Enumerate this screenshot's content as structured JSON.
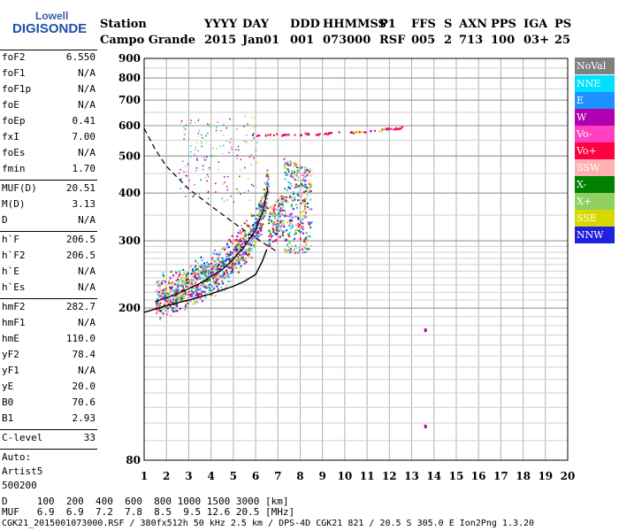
{
  "logo": {
    "line1": "Lowell",
    "line2": "DIGISONDE"
  },
  "header": {
    "labels": [
      "Station",
      "YYYY",
      "DAY",
      "DDD",
      "HHMMSS",
      "P1",
      "FFS",
      "S",
      "AXN",
      "PPS",
      "IGA",
      "PS"
    ],
    "values": [
      "Campo Grande",
      "2015",
      "Jan01",
      "001",
      "073000",
      "RSF",
      "005",
      "2",
      "713",
      "100",
      "03+",
      "25"
    ]
  },
  "params": [
    {
      "k": "foF2",
      "v": "6.550"
    },
    {
      "k": "foF1",
      "v": "N/A"
    },
    {
      "k": "foF1p",
      "v": "N/A"
    },
    {
      "k": "foE",
      "v": "N/A"
    },
    {
      "k": "foEp",
      "v": "0.41"
    },
    {
      "k": "fxI",
      "v": "7.00"
    },
    {
      "k": "foEs",
      "v": "N/A"
    },
    {
      "k": "fmin",
      "v": "1.70"
    },
    {
      "k": "MUF(D)",
      "v": "20.51"
    },
    {
      "k": "M(D)",
      "v": "3.13"
    },
    {
      "k": "D",
      "v": "N/A"
    },
    {
      "k": "h`F",
      "v": "206.5"
    },
    {
      "k": "h`F2",
      "v": "206.5"
    },
    {
      "k": "h`E",
      "v": "N/A"
    },
    {
      "k": "h`Es",
      "v": "N/A"
    },
    {
      "k": "hmF2",
      "v": "282.7"
    },
    {
      "k": "hmF1",
      "v": "N/A"
    },
    {
      "k": "hmE",
      "v": "110.0"
    },
    {
      "k": "yF2",
      "v": "78.4"
    },
    {
      "k": "yF1",
      "v": "N/A"
    },
    {
      "k": "yE",
      "v": "20.0"
    },
    {
      "k": "B0",
      "v": "70.6"
    },
    {
      "k": "B1",
      "v": "2.93"
    },
    {
      "k": "C-level",
      "v": "33"
    }
  ],
  "auto": {
    "line1": "Auto:",
    "line2": "Artist5",
    "line3": "500200"
  },
  "legend": [
    {
      "label": "NoVal",
      "color": "#808080"
    },
    {
      "label": "NNE",
      "color": "#00e0ff"
    },
    {
      "label": "E",
      "color": "#1e90ff"
    },
    {
      "label": "W",
      "color": "#b000b0"
    },
    {
      "label": "Vo-",
      "color": "#ff40c0"
    },
    {
      "label": "Vo+",
      "color": "#ff0040"
    },
    {
      "label": "SSW",
      "color": "#ffb0b0"
    },
    {
      "label": "X-",
      "color": "#008000"
    },
    {
      "label": "X+",
      "color": "#90d060"
    },
    {
      "label": "SSE",
      "color": "#d8d800"
    },
    {
      "label": "NNW",
      "color": "#2020e0"
    }
  ],
  "footer": {
    "d_row": "D     100  200  400  600  800 1000 1500 3000 [km]",
    "muf_row": "MUF   6.9  6.9  7.2  7.8  8.5  9.5 12.6 20.5 [MHz]",
    "info": "CGK21_2015001073000.RSF / 380fx512h 50 kHz 2.5 km / DPS-4D CGK21 821 / 20.5 S 305.0 E Ion2Png 1.3.20"
  },
  "chart_data": {
    "type": "scatter",
    "xlim": [
      1,
      20
    ],
    "ylim": [
      80,
      900
    ],
    "x_ticks": [
      1,
      2,
      3,
      4,
      5,
      6,
      7,
      8,
      9,
      10,
      11,
      12,
      13,
      14,
      15,
      16,
      17,
      18,
      19,
      20
    ],
    "y_ticks": [
      80,
      200,
      300,
      400,
      500,
      600,
      700,
      800,
      900
    ],
    "y_scale": "log",
    "grid": true,
    "legend_position": "right",
    "profile": {
      "x": [
        1.0,
        2.0,
        3.0,
        4.0,
        5.0,
        5.5,
        6.0,
        6.3,
        6.5
      ],
      "y": [
        195,
        203,
        210,
        218,
        228,
        235,
        245,
        265,
        285
      ]
    },
    "trace_upper": {
      "x": [
        1.5,
        2.5,
        3.5,
        4.5,
        5.0,
        5.5,
        6.0,
        6.3,
        6.55
      ],
      "y": [
        208,
        218,
        232,
        252,
        268,
        290,
        320,
        355,
        410
      ]
    },
    "dashed_curve": {
      "x": [
        1.0,
        1.5,
        2.0,
        3.0,
        4.0,
        5.0,
        6.0,
        7.0
      ],
      "y": [
        590,
        520,
        470,
        410,
        370,
        335,
        305,
        280
      ]
    },
    "horizontal_echo": {
      "x": [
        5.8,
        7.0,
        8.0,
        9.0,
        10.0,
        11.0,
        12.0,
        12.6
      ],
      "y": [
        570,
        570,
        572,
        574,
        578,
        583,
        590,
        595
      ]
    },
    "isolated_points": {
      "x": [
        13.6,
        13.6
      ],
      "y": [
        175,
        98
      ]
    }
  }
}
